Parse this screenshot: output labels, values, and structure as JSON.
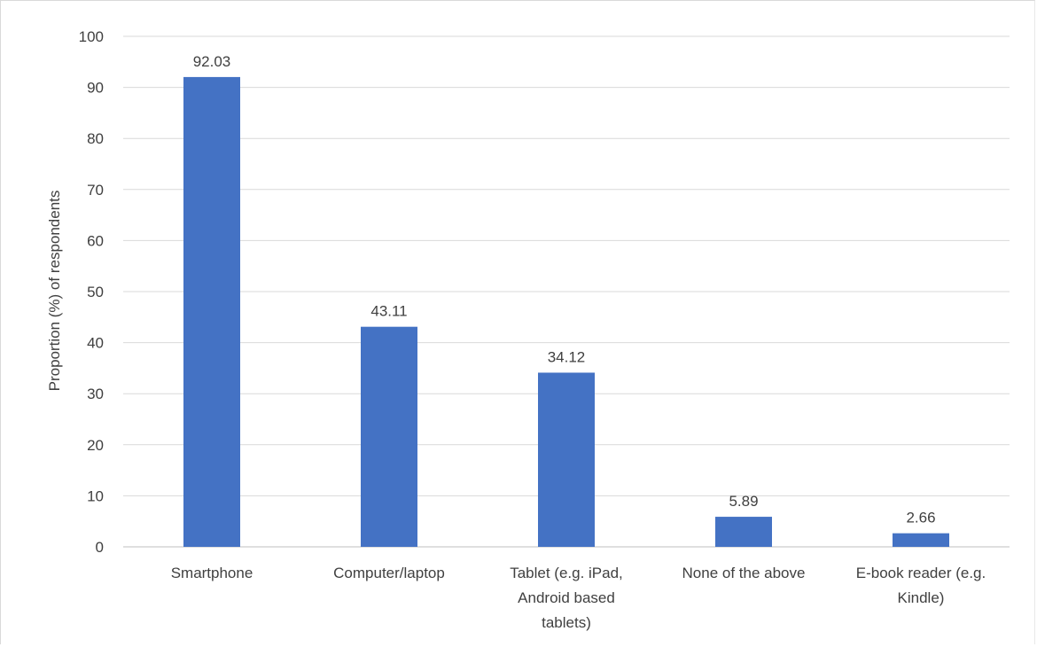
{
  "chart_data": {
    "type": "bar",
    "title": "",
    "xlabel": "",
    "ylabel": "Proportion (%) of respondents",
    "categories": [
      [
        "Smartphone"
      ],
      [
        "Computer/laptop"
      ],
      [
        "Tablet (e.g. iPad,",
        "Android based",
        "tablets)"
      ],
      [
        "None of the above"
      ],
      [
        "E-book reader (e.g.",
        "Kindle)"
      ]
    ],
    "values": [
      92.03,
      43.11,
      34.12,
      5.89,
      2.66
    ],
    "data_labels": [
      "92.03",
      "43.11",
      "34.12",
      "5.89",
      "2.66"
    ],
    "ylim": [
      0,
      100
    ],
    "yticks": [
      0,
      10,
      20,
      30,
      40,
      50,
      60,
      70,
      80,
      90,
      100
    ],
    "grid": true,
    "legend": "none",
    "colors": {
      "bar": "#4472c4",
      "grid": "#d9d9d9",
      "text": "#404040"
    }
  }
}
